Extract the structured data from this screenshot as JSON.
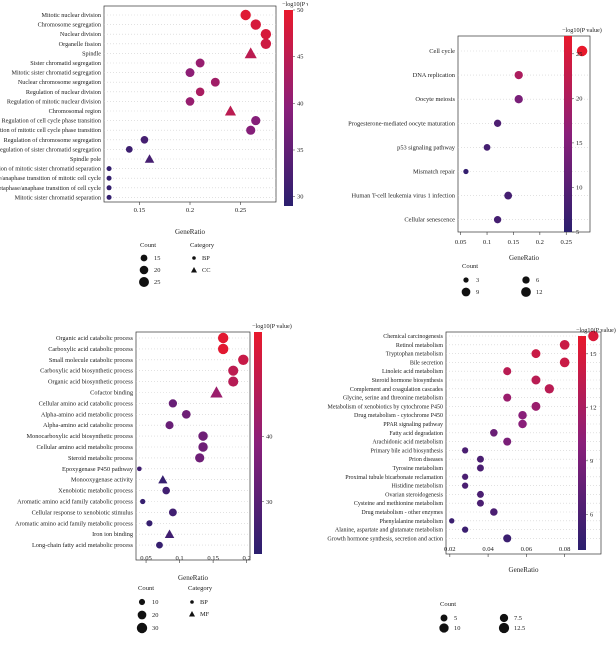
{
  "colors": {
    "low": "#2b1f6e",
    "mid": "#8a1f7a",
    "high": "#e8192c",
    "guide": "#cfcfcf"
  },
  "chart_data": [
    {
      "type": "scatter",
      "panel": "A",
      "categories": [
        "Mitotic nuclear division",
        "Chromosome segregation",
        "Nuclear division",
        "Organelle fission",
        "Spindle",
        "Sister chromatid segregation",
        "Mitotic sister chromatid segregation",
        "Nuclear chromosome segregation",
        "Regulation of nuclear division",
        "Regulation of mitotic nuclear division",
        "Chromosomal region",
        "Regulation of cell cycle phase transition",
        "Regulation of mitotic cell cycle phase transition",
        "Regulation of chromosome segregation",
        "Regulation of sister chromatid segregation",
        "Spindle pole",
        "Regulation of mitotic sister chromatid separation",
        "Metaphase/anaphase transition of mitotic cell cycle",
        "Metaphase/anaphase transition of cell cycle",
        "Mitotic sister chromatid separation"
      ],
      "gene_ratio": [
        0.255,
        0.265,
        0.275,
        0.275,
        0.26,
        0.21,
        0.2,
        0.225,
        0.21,
        0.2,
        0.24,
        0.265,
        0.26,
        0.155,
        0.14,
        0.16,
        0.12,
        0.12,
        0.12,
        0.12
      ],
      "count": [
        27,
        27,
        27,
        27,
        24,
        21,
        21,
        21,
        20,
        20,
        21,
        22,
        22,
        17,
        15,
        17,
        12,
        12,
        12,
        12
      ],
      "neglog10p": [
        49,
        48,
        48,
        47,
        45,
        41,
        40,
        42,
        43,
        41,
        45,
        39,
        39,
        32,
        31,
        32,
        30,
        30,
        30,
        30
      ],
      "category": [
        "BP",
        "BP",
        "BP",
        "BP",
        "CC",
        "BP",
        "BP",
        "BP",
        "BP",
        "BP",
        "CC",
        "BP",
        "BP",
        "BP",
        "BP",
        "CC",
        "BP",
        "BP",
        "BP",
        "BP"
      ],
      "xticks": [
        0.15,
        0.2,
        0.25
      ],
      "xlim": [
        0.115,
        0.285
      ],
      "xlabel": "GeneRatio",
      "colorbar": {
        "label": "−log10(P value)",
        "ticks": [
          30,
          35,
          40,
          45,
          50
        ],
        "range": [
          29,
          50
        ]
      },
      "size_legend": {
        "title": "Count",
        "values": [
          15,
          20,
          25
        ]
      },
      "shape_legend": {
        "title": "Category",
        "values": [
          "BP",
          "CC"
        ]
      }
    },
    {
      "type": "scatter",
      "panel": "B",
      "categories": [
        "Cell cycle",
        "DNA replication",
        "Oocyte meiosis",
        "Progesterone-mediated oocyte maturation",
        "p53 signaling pathway",
        "Mismatch repair",
        "Human T-cell leukemia virus 1 infection",
        "Cellular senescence"
      ],
      "gene_ratio": [
        0.28,
        0.16,
        0.16,
        0.12,
        0.1,
        0.06,
        0.14,
        0.12
      ],
      "count": [
        14,
        8,
        8,
        6,
        5,
        3,
        7,
        6
      ],
      "neglog10p": [
        27,
        20,
        14,
        9,
        8,
        6,
        8,
        8
      ],
      "xticks": [
        0.05,
        0.1,
        0.15,
        0.2,
        0.25
      ],
      "xlim": [
        0.045,
        0.295
      ],
      "xlabel": "GeneRatio",
      "colorbar": {
        "label": "−log10(P value)",
        "ticks": [
          5,
          10,
          15,
          20,
          25
        ],
        "range": [
          5,
          27
        ]
      },
      "size_legend": {
        "title": "Count",
        "values": [
          3,
          6,
          9,
          12
        ]
      }
    },
    {
      "type": "scatter",
      "panel": "C",
      "categories": [
        "Organic acid catabolic process",
        "Carboxylic acid catabolic process",
        "Small molecule catabolic process",
        "Carboxylic acid biosynthetic process",
        "Organic acid biosynthetic process",
        "Cofactor binding",
        "Cellular amino acid catabolic process",
        "Alpha-amino acid metabolic process",
        "Alpha-amino acid catabolic process",
        "Monocarboxylic acid biosynthetic process",
        "Cellular amino acid metabolic process",
        "Steroid metabolic process",
        "Epoxygenase P450 pathway",
        "Monooxygenase activity",
        "Xenobiotic metabolic process",
        "Aromatic amino acid family catabolic process",
        "Cellular response to xenobiotic stimulus",
        "Aromatic amino acid family metabolic process",
        "Iron ion binding",
        "Long-chain fatty acid metabolic process"
      ],
      "gene_ratio": [
        0.165,
        0.165,
        0.195,
        0.18,
        0.18,
        0.155,
        0.09,
        0.11,
        0.085,
        0.135,
        0.135,
        0.13,
        0.04,
        0.075,
        0.08,
        0.045,
        0.09,
        0.055,
        0.085,
        0.07
      ],
      "count": [
        30,
        30,
        30,
        28,
        28,
        27,
        18,
        20,
        17,
        24,
        24,
        23,
        7,
        14,
        15,
        8,
        16,
        10,
        15,
        12
      ],
      "neglog10p": [
        55,
        55,
        50,
        48,
        47,
        42,
        33,
        34,
        33,
        34,
        34,
        34,
        26,
        24,
        26,
        24,
        26,
        24,
        26,
        24
      ],
      "category": [
        "BP",
        "BP",
        "BP",
        "BP",
        "BP",
        "MF",
        "BP",
        "BP",
        "BP",
        "BP",
        "BP",
        "BP",
        "BP",
        "MF",
        "BP",
        "BP",
        "BP",
        "BP",
        "MF",
        "BP"
      ],
      "xticks": [
        0.05,
        0.1,
        0.15,
        0.2
      ],
      "xlim": [
        0.035,
        0.205
      ],
      "xlabel": "GeneRatio",
      "colorbar": {
        "label": "−log10(P value)",
        "ticks": [
          30,
          40
        ],
        "range": [
          22,
          56
        ]
      },
      "size_legend": {
        "title": "Count",
        "values": [
          10,
          20,
          30
        ]
      },
      "shape_legend": {
        "title": "Category",
        "values": [
          "BP",
          "MF"
        ]
      }
    },
    {
      "type": "scatter",
      "panel": "D",
      "categories": [
        "Chemical carcinogenesis",
        "Retinol metabolism",
        "Tryptophan metabolism",
        "Bile secretion",
        "Linoleic acid metabolism",
        "Steroid hormone biosynthesis",
        "Complement and coagulation cascades",
        "Glycine, serine and threonine metabolism",
        "Metabolism of xenobiotics by cytochrome P450",
        "Drug metabolism - cytochrome P450",
        "PPAR signaling pathway",
        "Fatty acid degradation",
        "Arachidonic acid metabolism",
        "Primary bile acid biosynthesis",
        "Prion diseases",
        "Tyrosine metabolism",
        "Proximal tubule bicarbonate reclamation",
        "Histidine metabolism",
        "Ovarian steroidogenesis",
        "Cysteine and methionine metabolism",
        "Drug metabolism - other enzymes",
        "Phenylalanine metabolism",
        "Alanine, aspartate and glutamate metabolism",
        "Growth hormone synthesis, secretion and action"
      ],
      "gene_ratio": [
        0.095,
        0.08,
        0.065,
        0.08,
        0.05,
        0.065,
        0.072,
        0.05,
        0.065,
        0.058,
        0.058,
        0.043,
        0.05,
        0.028,
        0.036,
        0.036,
        0.028,
        0.028,
        0.036,
        0.036,
        0.043,
        0.021,
        0.028,
        0.05
      ],
      "count": [
        13,
        11,
        9,
        11,
        7,
        9,
        10,
        7,
        9,
        8,
        8,
        6,
        7,
        4,
        5,
        5,
        4,
        4,
        5,
        5,
        6,
        3,
        4,
        7
      ],
      "neglog10p": [
        15,
        14,
        14,
        14,
        13,
        13,
        13,
        11,
        11,
        10,
        10,
        8,
        9,
        6,
        6,
        6,
        6,
        6,
        6,
        6,
        6,
        5,
        5,
        5
      ],
      "xticks": [
        0.02,
        0.04,
        0.06,
        0.08
      ],
      "xlim": [
        0.018,
        0.099
      ],
      "xlabel": "GeneRatio",
      "colorbar": {
        "label": "−log10(P value)",
        "ticks": [
          6,
          9,
          12,
          15
        ],
        "range": [
          4,
          16
        ]
      },
      "size_legend": {
        "title": "Count",
        "values": [
          5.0,
          7.5,
          10.0,
          12.5
        ]
      }
    }
  ]
}
